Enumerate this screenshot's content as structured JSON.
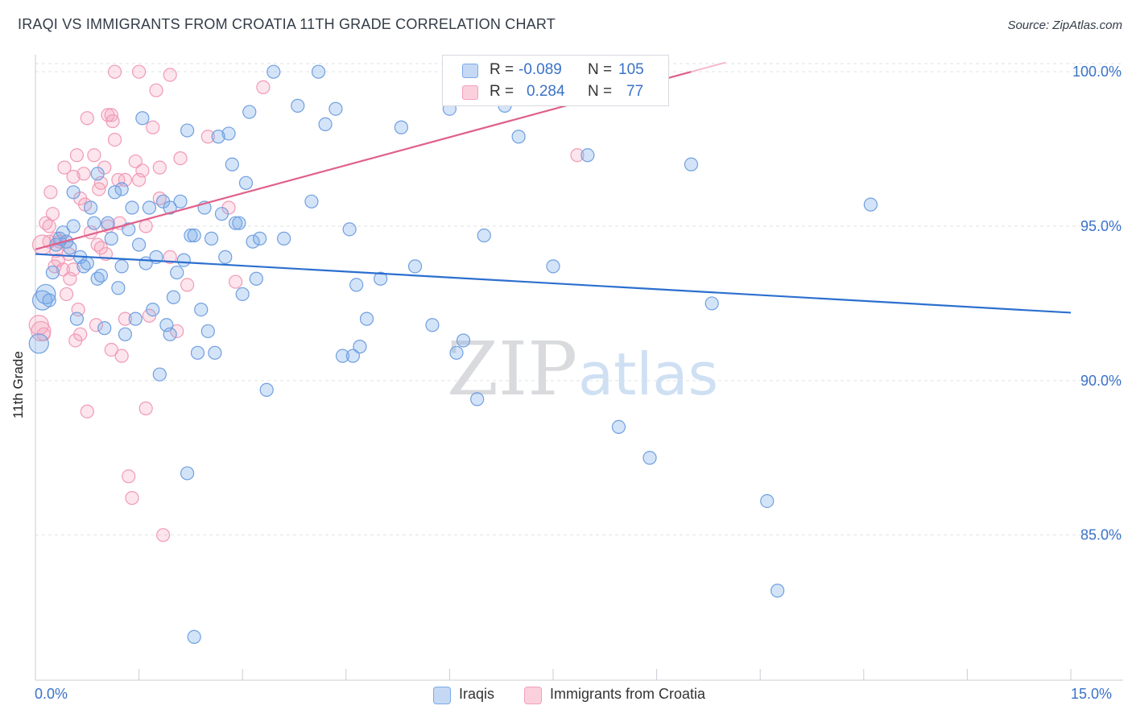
{
  "title": "IRAQI VS IMMIGRANTS FROM CROATIA 11TH GRADE CORRELATION CHART",
  "source": "Source: ZipAtlas.com",
  "watermark": {
    "zip": "ZIP",
    "atlas": "atlas"
  },
  "stats": {
    "r_label": "R =",
    "n_label": "N =",
    "iraqis": {
      "r": "-0.089",
      "n": "105"
    },
    "croatia": {
      "r": "0.284",
      "n": "77"
    }
  },
  "legend": {
    "iraqis": "Iraqis",
    "croatia": "Immigrants from Croatia"
  },
  "chart_data": {
    "type": "scatter",
    "title": "IRAQI VS IMMIGRANTS FROM CROATIA 11TH GRADE CORRELATION CHART",
    "xlabel": "",
    "ylabel": "11th Grade",
    "xlim": [
      0,
      15
    ],
    "ylim": [
      80.3,
      100.5
    ],
    "x_tick_labels": [
      "0.0%",
      "15.0%"
    ],
    "y_ticks": [
      85,
      90,
      95,
      100
    ],
    "y_tick_labels": [
      "85.0%",
      "90.0%",
      "95.0%",
      "100.0%"
    ],
    "grid": true,
    "colors": {
      "iraqis": "#7aaae8",
      "croatia": "#f4a0bb",
      "iraqis_line": "#2c6fcf",
      "croatia_line": "#e0608a"
    },
    "series": [
      {
        "name": "Iraqis",
        "color": "#7aaae8",
        "trend": {
          "x0": 0,
          "y0": 94.1,
          "x1": 15,
          "y1": 92.2
        },
        "points": [
          [
            0.05,
            91.2
          ],
          [
            0.1,
            92.6
          ],
          [
            0.15,
            92.8
          ],
          [
            0.2,
            92.6
          ],
          [
            0.25,
            93.5
          ],
          [
            0.3,
            94.4
          ],
          [
            0.35,
            94.6
          ],
          [
            0.4,
            94.8
          ],
          [
            0.45,
            94.5
          ],
          [
            0.5,
            94.3
          ],
          [
            0.55,
            95.0
          ],
          [
            0.6,
            92.0
          ],
          [
            0.65,
            94.0
          ],
          [
            0.7,
            93.7
          ],
          [
            0.75,
            93.8
          ],
          [
            0.8,
            95.6
          ],
          [
            0.85,
            95.1
          ],
          [
            0.9,
            93.3
          ],
          [
            0.95,
            93.4
          ],
          [
            1.0,
            91.7
          ],
          [
            1.05,
            95.1
          ],
          [
            1.1,
            94.6
          ],
          [
            1.15,
            96.1
          ],
          [
            1.2,
            93.0
          ],
          [
            1.25,
            93.7
          ],
          [
            1.3,
            91.5
          ],
          [
            1.35,
            94.9
          ],
          [
            1.4,
            95.6
          ],
          [
            1.45,
            92.0
          ],
          [
            1.5,
            94.4
          ],
          [
            1.55,
            98.5
          ],
          [
            1.6,
            93.8
          ],
          [
            1.65,
            95.6
          ],
          [
            1.7,
            92.3
          ],
          [
            1.75,
            94.0
          ],
          [
            1.8,
            90.2
          ],
          [
            1.85,
            95.8
          ],
          [
            1.9,
            91.8
          ],
          [
            1.95,
            91.5
          ],
          [
            2.0,
            92.7
          ],
          [
            2.05,
            93.5
          ],
          [
            2.1,
            95.8
          ],
          [
            2.15,
            93.9
          ],
          [
            2.2,
            98.1
          ],
          [
            2.25,
            94.7
          ],
          [
            2.3,
            94.7
          ],
          [
            2.35,
            90.9
          ],
          [
            2.4,
            92.3
          ],
          [
            2.45,
            95.6
          ],
          [
            2.5,
            91.6
          ],
          [
            2.55,
            94.6
          ],
          [
            2.6,
            90.9
          ],
          [
            2.2,
            87.0
          ],
          [
            2.3,
            81.7
          ],
          [
            2.65,
            97.9
          ],
          [
            2.7,
            95.4
          ],
          [
            2.8,
            98.0
          ],
          [
            2.85,
            97.0
          ],
          [
            2.9,
            95.1
          ],
          [
            2.95,
            95.1
          ],
          [
            3.0,
            92.8
          ],
          [
            3.05,
            96.4
          ],
          [
            3.1,
            98.7
          ],
          [
            3.15,
            94.5
          ],
          [
            3.2,
            93.3
          ],
          [
            3.25,
            94.6
          ],
          [
            3.35,
            89.7
          ],
          [
            3.45,
            100.0
          ],
          [
            3.6,
            94.6
          ],
          [
            3.8,
            98.9
          ],
          [
            4.0,
            95.8
          ],
          [
            4.2,
            98.3
          ],
          [
            4.35,
            98.8
          ],
          [
            4.45,
            90.8
          ],
          [
            4.55,
            94.9
          ],
          [
            4.6,
            90.8
          ],
          [
            4.65,
            93.1
          ],
          [
            4.7,
            91.1
          ],
          [
            4.8,
            92.0
          ],
          [
            5.0,
            93.3
          ],
          [
            5.3,
            98.2
          ],
          [
            5.5,
            93.7
          ],
          [
            5.75,
            91.8
          ],
          [
            6.0,
            98.8
          ],
          [
            6.1,
            90.9
          ],
          [
            6.2,
            91.3
          ],
          [
            6.4,
            89.4
          ],
          [
            6.5,
            94.7
          ],
          [
            6.8,
            98.9
          ],
          [
            7.0,
            97.9
          ],
          [
            7.5,
            93.7
          ],
          [
            8.0,
            97.3
          ],
          [
            8.45,
            88.5
          ],
          [
            8.9,
            87.5
          ],
          [
            9.5,
            97.0
          ],
          [
            9.8,
            92.5
          ],
          [
            10.6,
            86.1
          ],
          [
            10.75,
            83.2
          ],
          [
            12.1,
            95.7
          ],
          [
            4.1,
            100.0
          ],
          [
            0.55,
            96.1
          ],
          [
            1.95,
            95.6
          ],
          [
            1.25,
            96.2
          ],
          [
            2.75,
            94.0
          ],
          [
            0.9,
            96.7
          ]
        ]
      },
      {
        "name": "Immigrants from Croatia",
        "color": "#f4a0bb",
        "trend": {
          "x0": 0,
          "y0": 94.25,
          "x1": 9.5,
          "y1": 100.0
        },
        "points": [
          [
            0.05,
            91.8
          ],
          [
            0.08,
            91.6
          ],
          [
            0.1,
            94.4
          ],
          [
            0.12,
            91.5
          ],
          [
            0.15,
            95.1
          ],
          [
            0.2,
            94.5
          ],
          [
            0.22,
            96.1
          ],
          [
            0.25,
            95.4
          ],
          [
            0.28,
            93.7
          ],
          [
            0.3,
            94.2
          ],
          [
            0.33,
            93.9
          ],
          [
            0.35,
            94.5
          ],
          [
            0.4,
            93.6
          ],
          [
            0.42,
            96.9
          ],
          [
            0.45,
            92.8
          ],
          [
            0.48,
            94.1
          ],
          [
            0.5,
            93.3
          ],
          [
            0.55,
            93.6
          ],
          [
            0.58,
            91.3
          ],
          [
            0.6,
            97.3
          ],
          [
            0.62,
            92.3
          ],
          [
            0.65,
            95.9
          ],
          [
            0.7,
            96.7
          ],
          [
            0.72,
            95.7
          ],
          [
            0.75,
            98.5
          ],
          [
            0.8,
            94.8
          ],
          [
            0.85,
            97.3
          ],
          [
            0.88,
            91.8
          ],
          [
            0.9,
            94.4
          ],
          [
            0.92,
            96.2
          ],
          [
            0.95,
            96.4
          ],
          [
            1.0,
            96.9
          ],
          [
            1.02,
            94.1
          ],
          [
            1.05,
            98.6
          ],
          [
            1.1,
            98.6
          ],
          [
            1.12,
            98.4
          ],
          [
            1.15,
            97.8
          ],
          [
            1.2,
            96.5
          ],
          [
            1.22,
            95.1
          ],
          [
            1.25,
            90.8
          ],
          [
            1.3,
            96.5
          ],
          [
            1.35,
            86.9
          ],
          [
            1.4,
            86.2
          ],
          [
            1.45,
            97.1
          ],
          [
            1.5,
            96.5
          ],
          [
            1.55,
            96.8
          ],
          [
            1.6,
            95.0
          ],
          [
            1.65,
            92.1
          ],
          [
            1.7,
            98.2
          ],
          [
            1.75,
            99.4
          ],
          [
            1.8,
            96.9
          ],
          [
            1.85,
            85.0
          ],
          [
            1.95,
            99.9
          ],
          [
            2.05,
            91.6
          ],
          [
            2.1,
            97.2
          ],
          [
            2.2,
            93.1
          ],
          [
            2.5,
            97.9
          ],
          [
            2.8,
            95.6
          ],
          [
            2.9,
            93.2
          ],
          [
            3.3,
            99.5
          ],
          [
            7.85,
            97.3
          ],
          [
            9.0,
            100.0
          ],
          [
            1.15,
            100.0
          ],
          [
            1.5,
            100.0
          ],
          [
            0.75,
            89.0
          ],
          [
            1.6,
            89.1
          ],
          [
            0.3,
            94.6
          ],
          [
            0.45,
            94.5
          ],
          [
            1.1,
            91.0
          ],
          [
            1.95,
            94.0
          ],
          [
            0.65,
            91.5
          ],
          [
            1.3,
            92.0
          ],
          [
            0.55,
            96.6
          ],
          [
            1.8,
            95.9
          ],
          [
            1.05,
            95.0
          ],
          [
            0.95,
            94.3
          ],
          [
            0.2,
            95.0
          ]
        ]
      }
    ]
  }
}
